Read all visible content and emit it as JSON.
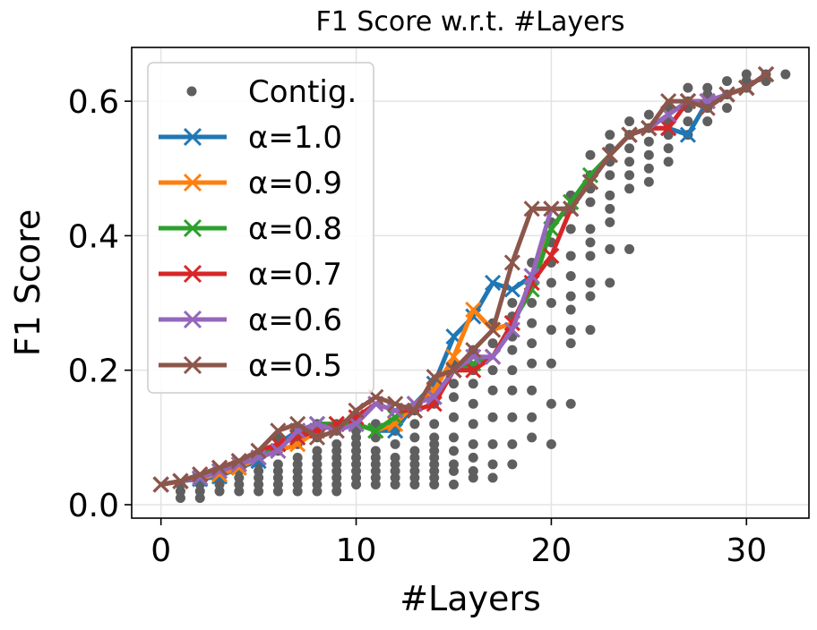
{
  "chart_data": {
    "type": "line",
    "title": "F1 Score w.r.t. #Layers",
    "xlabel": "#Layers",
    "ylabel": "F1 Score",
    "xlim": [
      -1.5,
      33.2
    ],
    "ylim": [
      -0.02,
      0.68
    ],
    "xticks": [
      0,
      10,
      20,
      30
    ],
    "yticks": [
      0.0,
      0.2,
      0.4,
      0.6
    ],
    "xtick_labels": [
      "0",
      "10",
      "20",
      "30"
    ],
    "ytick_labels": [
      "0.0",
      "0.2",
      "0.4",
      "0.6"
    ],
    "grid": true,
    "legend_position": "top-left",
    "scatter": {
      "name": "Contig.",
      "color": "#5f5f5f",
      "points": [
        [
          1,
          0.01
        ],
        [
          1,
          0.02
        ],
        [
          1,
          0.03
        ],
        [
          2,
          0.01
        ],
        [
          2,
          0.02
        ],
        [
          2,
          0.03
        ],
        [
          2,
          0.04
        ],
        [
          3,
          0.02
        ],
        [
          3,
          0.03
        ],
        [
          3,
          0.04
        ],
        [
          3,
          0.05
        ],
        [
          4,
          0.02
        ],
        [
          4,
          0.03
        ],
        [
          4,
          0.04
        ],
        [
          4,
          0.05
        ],
        [
          4,
          0.06
        ],
        [
          5,
          0.02
        ],
        [
          5,
          0.03
        ],
        [
          5,
          0.04
        ],
        [
          5,
          0.05
        ],
        [
          5,
          0.06
        ],
        [
          5,
          0.07
        ],
        [
          6,
          0.02
        ],
        [
          6,
          0.03
        ],
        [
          6,
          0.04
        ],
        [
          6,
          0.05
        ],
        [
          6,
          0.06
        ],
        [
          6,
          0.08
        ],
        [
          6,
          0.1
        ],
        [
          7,
          0.02
        ],
        [
          7,
          0.03
        ],
        [
          7,
          0.04
        ],
        [
          7,
          0.05
        ],
        [
          7,
          0.06
        ],
        [
          7,
          0.07
        ],
        [
          7,
          0.09
        ],
        [
          7,
          0.11
        ],
        [
          8,
          0.02
        ],
        [
          8,
          0.03
        ],
        [
          8,
          0.04
        ],
        [
          8,
          0.05
        ],
        [
          8,
          0.06
        ],
        [
          8,
          0.07
        ],
        [
          8,
          0.08
        ],
        [
          8,
          0.1
        ],
        [
          8,
          0.12
        ],
        [
          9,
          0.02
        ],
        [
          9,
          0.03
        ],
        [
          9,
          0.04
        ],
        [
          9,
          0.05
        ],
        [
          9,
          0.06
        ],
        [
          9,
          0.07
        ],
        [
          9,
          0.08
        ],
        [
          9,
          0.09
        ],
        [
          9,
          0.11
        ],
        [
          9,
          0.12
        ],
        [
          10,
          0.03
        ],
        [
          10,
          0.04
        ],
        [
          10,
          0.05
        ],
        [
          10,
          0.06
        ],
        [
          10,
          0.07
        ],
        [
          10,
          0.08
        ],
        [
          10,
          0.09
        ],
        [
          10,
          0.1
        ],
        [
          10,
          0.11
        ],
        [
          10,
          0.13
        ],
        [
          11,
          0.03
        ],
        [
          11,
          0.04
        ],
        [
          11,
          0.05
        ],
        [
          11,
          0.06
        ],
        [
          11,
          0.07
        ],
        [
          11,
          0.08
        ],
        [
          11,
          0.1
        ],
        [
          11,
          0.11
        ],
        [
          11,
          0.12
        ],
        [
          12,
          0.03
        ],
        [
          12,
          0.04
        ],
        [
          12,
          0.05
        ],
        [
          12,
          0.06
        ],
        [
          12,
          0.07
        ],
        [
          12,
          0.09
        ],
        [
          12,
          0.11
        ],
        [
          12,
          0.12
        ],
        [
          13,
          0.03
        ],
        [
          13,
          0.04
        ],
        [
          13,
          0.05
        ],
        [
          13,
          0.06
        ],
        [
          13,
          0.07
        ],
        [
          13,
          0.08
        ],
        [
          13,
          0.1
        ],
        [
          13,
          0.12
        ],
        [
          13,
          0.14
        ],
        [
          14,
          0.03
        ],
        [
          14,
          0.04
        ],
        [
          14,
          0.05
        ],
        [
          14,
          0.06
        ],
        [
          14,
          0.07
        ],
        [
          14,
          0.08
        ],
        [
          14,
          0.09
        ],
        [
          14,
          0.1
        ],
        [
          14,
          0.12
        ],
        [
          14,
          0.15
        ],
        [
          14,
          0.17
        ],
        [
          15,
          0.03
        ],
        [
          15,
          0.05
        ],
        [
          15,
          0.06
        ],
        [
          15,
          0.08
        ],
        [
          15,
          0.1
        ],
        [
          15,
          0.13
        ],
        [
          15,
          0.16
        ],
        [
          15,
          0.18
        ],
        [
          15,
          0.21
        ],
        [
          16,
          0.04
        ],
        [
          16,
          0.05
        ],
        [
          16,
          0.07
        ],
        [
          16,
          0.09
        ],
        [
          16,
          0.12
        ],
        [
          16,
          0.15
        ],
        [
          16,
          0.18
        ],
        [
          16,
          0.2
        ],
        [
          16,
          0.23
        ],
        [
          17,
          0.04
        ],
        [
          17,
          0.06
        ],
        [
          17,
          0.09
        ],
        [
          17,
          0.13
        ],
        [
          17,
          0.17
        ],
        [
          17,
          0.2
        ],
        [
          17,
          0.24
        ],
        [
          17,
          0.27
        ],
        [
          18,
          0.06
        ],
        [
          18,
          0.09
        ],
        [
          18,
          0.13
        ],
        [
          18,
          0.17
        ],
        [
          18,
          0.2
        ],
        [
          18,
          0.23
        ],
        [
          18,
          0.25
        ],
        [
          18,
          0.28
        ],
        [
          18,
          0.3
        ],
        [
          19,
          0.1
        ],
        [
          19,
          0.13
        ],
        [
          19,
          0.17
        ],
        [
          19,
          0.21
        ],
        [
          19,
          0.24
        ],
        [
          19,
          0.27
        ],
        [
          19,
          0.3
        ],
        [
          19,
          0.33
        ],
        [
          19,
          0.36
        ],
        [
          20,
          0.09
        ],
        [
          20,
          0.15
        ],
        [
          20,
          0.21
        ],
        [
          20,
          0.26
        ],
        [
          20,
          0.3
        ],
        [
          20,
          0.33
        ],
        [
          20,
          0.36
        ],
        [
          20,
          0.39
        ],
        [
          20,
          0.42
        ],
        [
          21,
          0.15
        ],
        [
          21,
          0.24
        ],
        [
          21,
          0.26
        ],
        [
          21,
          0.29
        ],
        [
          21,
          0.31
        ],
        [
          21,
          0.34
        ],
        [
          21,
          0.37
        ],
        [
          21,
          0.41
        ],
        [
          21,
          0.44
        ],
        [
          21,
          0.46
        ],
        [
          22,
          0.26
        ],
        [
          22,
          0.31
        ],
        [
          22,
          0.33
        ],
        [
          22,
          0.37
        ],
        [
          22,
          0.39
        ],
        [
          22,
          0.41
        ],
        [
          22,
          0.45
        ],
        [
          22,
          0.47
        ],
        [
          22,
          0.49
        ],
        [
          22,
          0.52
        ],
        [
          23,
          0.33
        ],
        [
          23,
          0.38
        ],
        [
          23,
          0.42
        ],
        [
          23,
          0.44
        ],
        [
          23,
          0.46
        ],
        [
          23,
          0.49
        ],
        [
          23,
          0.51
        ],
        [
          23,
          0.53
        ],
        [
          23,
          0.55
        ],
        [
          24,
          0.38
        ],
        [
          24,
          0.47
        ],
        [
          24,
          0.49
        ],
        [
          24,
          0.51
        ],
        [
          24,
          0.53
        ],
        [
          24,
          0.55
        ],
        [
          24,
          0.57
        ],
        [
          25,
          0.48
        ],
        [
          25,
          0.5
        ],
        [
          25,
          0.52
        ],
        [
          25,
          0.54
        ],
        [
          25,
          0.56
        ],
        [
          25,
          0.58
        ],
        [
          26,
          0.51
        ],
        [
          26,
          0.53
        ],
        [
          26,
          0.55
        ],
        [
          26,
          0.57
        ],
        [
          26,
          0.59
        ],
        [
          27,
          0.55
        ],
        [
          27,
          0.57
        ],
        [
          27,
          0.59
        ],
        [
          27,
          0.6
        ],
        [
          27,
          0.62
        ],
        [
          28,
          0.57
        ],
        [
          28,
          0.59
        ],
        [
          28,
          0.61
        ],
        [
          28,
          0.62
        ],
        [
          29,
          0.59
        ],
        [
          29,
          0.61
        ],
        [
          29,
          0.63
        ],
        [
          30,
          0.62
        ],
        [
          30,
          0.63
        ],
        [
          30,
          0.64
        ],
        [
          31,
          0.63
        ],
        [
          31,
          0.64
        ],
        [
          32,
          0.64
        ]
      ]
    },
    "series": [
      {
        "name": "α=1.0",
        "color": "#1f77b4",
        "x": [
          0,
          1,
          2,
          3,
          4,
          5,
          6,
          7,
          8,
          9,
          10,
          11,
          12,
          13,
          14,
          15,
          16,
          17,
          18,
          19,
          20,
          21,
          22,
          23,
          24,
          25,
          26,
          27,
          28,
          29,
          30,
          31
        ],
        "y": [
          0.03,
          0.035,
          0.038,
          0.042,
          0.055,
          0.065,
          0.09,
          0.11,
          0.12,
          0.12,
          0.12,
          0.11,
          0.11,
          0.15,
          0.18,
          0.25,
          0.28,
          0.33,
          0.32,
          0.34,
          0.41,
          0.45,
          0.48,
          0.52,
          0.55,
          0.56,
          0.56,
          0.55,
          0.6,
          0.61,
          0.62,
          0.64
        ]
      },
      {
        "name": "α=0.9",
        "color": "#ff7f0e",
        "x": [
          0,
          1,
          2,
          3,
          4,
          5,
          6,
          7,
          8,
          9,
          10,
          11,
          12,
          13,
          14,
          15,
          16,
          17,
          18,
          19,
          20,
          21,
          22,
          23,
          24,
          25,
          26,
          27,
          28,
          29,
          30,
          31
        ],
        "y": [
          0.03,
          0.035,
          0.04,
          0.045,
          0.055,
          0.07,
          0.08,
          0.09,
          0.11,
          0.12,
          0.12,
          0.11,
          0.12,
          0.15,
          0.17,
          0.22,
          0.29,
          0.26,
          0.27,
          0.33,
          0.41,
          0.45,
          0.48,
          0.52,
          0.55,
          0.56,
          0.58,
          0.6,
          0.6,
          0.61,
          0.62,
          0.64
        ]
      },
      {
        "name": "α=0.8",
        "color": "#2ca02c",
        "x": [
          0,
          1,
          2,
          3,
          4,
          5,
          6,
          7,
          8,
          9,
          10,
          11,
          12,
          13,
          14,
          15,
          16,
          17,
          18,
          19,
          20,
          21,
          22,
          23,
          24,
          25,
          26,
          27,
          28,
          29,
          30,
          31
        ],
        "y": [
          0.03,
          0.035,
          0.04,
          0.05,
          0.06,
          0.07,
          0.09,
          0.1,
          0.12,
          0.12,
          0.12,
          0.11,
          0.13,
          0.15,
          0.16,
          0.2,
          0.21,
          0.22,
          0.27,
          0.32,
          0.41,
          0.45,
          0.49,
          0.52,
          0.55,
          0.56,
          0.58,
          0.6,
          0.6,
          0.61,
          0.62,
          0.64
        ]
      },
      {
        "name": "α=0.7",
        "color": "#d62728",
        "x": [
          0,
          1,
          2,
          3,
          4,
          5,
          6,
          7,
          8,
          9,
          10,
          11,
          12,
          13,
          14,
          15,
          16,
          17,
          18,
          19,
          20,
          21,
          22,
          23,
          24,
          25,
          26,
          27,
          28,
          29,
          30,
          31
        ],
        "y": [
          0.03,
          0.035,
          0.045,
          0.055,
          0.065,
          0.08,
          0.09,
          0.1,
          0.11,
          0.12,
          0.13,
          0.15,
          0.14,
          0.14,
          0.15,
          0.2,
          0.2,
          0.22,
          0.27,
          0.33,
          0.37,
          0.44,
          0.48,
          0.52,
          0.55,
          0.56,
          0.56,
          0.6,
          0.6,
          0.61,
          0.62,
          0.64
        ]
      },
      {
        "name": "α=0.6",
        "color": "#9467bd",
        "x": [
          0,
          1,
          2,
          3,
          4,
          5,
          6,
          7,
          8,
          9,
          10,
          11,
          12,
          13,
          14,
          15,
          16,
          17,
          18,
          19,
          20,
          21,
          22,
          23,
          24,
          25,
          26,
          27,
          28,
          29,
          30,
          31
        ],
        "y": [
          0.03,
          0.035,
          0.04,
          0.05,
          0.06,
          0.07,
          0.08,
          0.11,
          0.12,
          0.11,
          0.12,
          0.15,
          0.14,
          0.15,
          0.16,
          0.2,
          0.22,
          0.22,
          0.26,
          0.34,
          0.44,
          0.44,
          0.48,
          0.52,
          0.55,
          0.56,
          0.58,
          0.6,
          0.6,
          0.61,
          0.62,
          0.64
        ]
      },
      {
        "name": "α=0.5",
        "color": "#8c564b",
        "x": [
          0,
          1,
          2,
          3,
          4,
          5,
          6,
          7,
          8,
          9,
          10,
          11,
          12,
          13,
          14,
          15,
          16,
          17,
          18,
          19,
          20,
          21,
          22,
          23,
          24,
          25,
          26,
          27,
          28,
          29,
          30,
          31
        ],
        "y": [
          0.03,
          0.035,
          0.045,
          0.055,
          0.065,
          0.08,
          0.11,
          0.12,
          0.1,
          0.11,
          0.14,
          0.16,
          0.15,
          0.14,
          0.19,
          0.2,
          0.23,
          0.26,
          0.36,
          0.44,
          0.44,
          0.44,
          0.48,
          0.52,
          0.55,
          0.56,
          0.6,
          0.6,
          0.59,
          0.61,
          0.62,
          0.64
        ]
      }
    ]
  }
}
